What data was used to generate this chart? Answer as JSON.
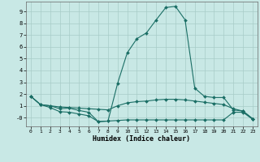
{
  "xlabel": "Humidex (Indice chaleur)",
  "bg_color": "#c8e8e5",
  "grid_color": "#a8ccc8",
  "line_color": "#1a6e65",
  "x_ticks": [
    0,
    1,
    2,
    3,
    4,
    5,
    6,
    7,
    8,
    9,
    10,
    11,
    12,
    13,
    14,
    15,
    16,
    17,
    18,
    19,
    20,
    21,
    22,
    23
  ],
  "y_ticks": [
    0,
    1,
    2,
    3,
    4,
    5,
    6,
    7,
    8,
    9
  ],
  "y_tick_labels": [
    "-0",
    "1",
    "2",
    "3",
    "4",
    "5",
    "6",
    "7",
    "8",
    "9"
  ],
  "xlim": [
    -0.5,
    23.5
  ],
  "ylim": [
    -0.75,
    9.85
  ],
  "curve1_x": [
    0,
    1,
    2,
    3,
    4,
    5,
    6,
    7,
    8,
    9,
    10,
    11,
    12,
    13,
    14,
    15,
    16,
    17,
    18,
    19,
    20,
    21,
    22,
    23
  ],
  "curve1_y": [
    1.8,
    1.1,
    1.0,
    0.75,
    0.8,
    0.6,
    0.45,
    -0.35,
    -0.3,
    2.9,
    5.5,
    6.7,
    7.2,
    8.3,
    9.35,
    9.45,
    8.3,
    2.5,
    1.8,
    1.7,
    1.7,
    0.65,
    0.55,
    -0.1
  ],
  "curve2_x": [
    0,
    1,
    2,
    3,
    4,
    5,
    6,
    7,
    8,
    9,
    10,
    11,
    12,
    13,
    14,
    15,
    16,
    17,
    18,
    19,
    20,
    21,
    22,
    23
  ],
  "curve2_y": [
    1.8,
    1.1,
    1.0,
    0.9,
    0.85,
    0.8,
    0.75,
    0.7,
    0.65,
    1.0,
    1.25,
    1.35,
    1.4,
    1.5,
    1.55,
    1.55,
    1.5,
    1.4,
    1.3,
    1.2,
    1.1,
    0.75,
    0.55,
    -0.1
  ],
  "curve3_x": [
    0,
    1,
    2,
    3,
    4,
    5,
    6,
    7,
    8,
    9,
    10,
    11,
    12,
    13,
    14,
    15,
    16,
    17,
    18,
    19,
    20,
    21,
    22,
    23
  ],
  "curve3_y": [
    1.8,
    1.1,
    0.85,
    0.5,
    0.45,
    0.3,
    0.15,
    -0.35,
    -0.3,
    -0.25,
    -0.2,
    -0.2,
    -0.2,
    -0.2,
    -0.2,
    -0.2,
    -0.2,
    -0.2,
    -0.2,
    -0.2,
    -0.2,
    0.45,
    0.45,
    -0.15
  ]
}
